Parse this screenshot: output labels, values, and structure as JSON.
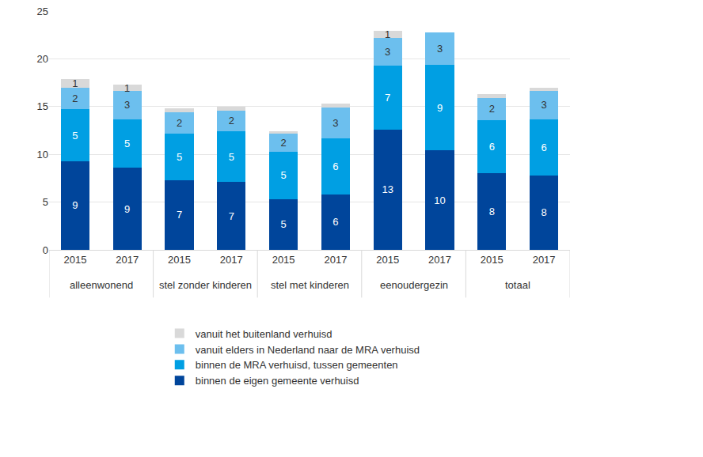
{
  "chart_data": {
    "type": "bar",
    "stacked": true,
    "data_labels": true,
    "grid": true,
    "legend": "bottom",
    "categories": [
      "2015",
      "2017",
      "2015",
      "2017",
      "2015",
      "2017",
      "2015",
      "2017",
      "2015",
      "2017"
    ],
    "groups": [
      "alleenwonend",
      "alleenwonend",
      "stel zonder kinderen",
      "stel zonder kinderen",
      "stel met kinderen",
      "stel met kinderen",
      "eenoudergezin",
      "eenoudergezin",
      "totaal",
      "totaal"
    ],
    "ylim": [
      0,
      25
    ],
    "yticks": [
      0,
      5,
      10,
      15,
      20,
      25
    ],
    "series": [
      {
        "name": "binnen de eigen gemeente verhuisd",
        "color": "#00459b",
        "values": [
          9.3,
          8.6,
          7.3,
          7.1,
          5.3,
          5.8,
          12.6,
          10.4,
          8.0,
          7.8
        ],
        "value_labels": [
          "9",
          "9",
          "7",
          "7",
          "5",
          "6",
          "13",
          "10",
          "8",
          "8"
        ]
      },
      {
        "name": "binnen de MRA verhuisd, tussen gemeenten",
        "color": "#009fe3",
        "values": [
          5.4,
          5.1,
          4.9,
          5.3,
          5.0,
          5.9,
          6.7,
          9.0,
          5.6,
          5.9
        ],
        "value_labels": [
          "5",
          "5",
          "5",
          "5",
          "5",
          "6",
          "7",
          "9",
          "6",
          "6"
        ]
      },
      {
        "name": "vanuit elders in Nederland naar de MRA verhuisd",
        "color": "#6cbfee",
        "values": [
          2.3,
          2.9,
          2.2,
          2.2,
          1.9,
          3.2,
          2.9,
          3.4,
          2.3,
          2.9
        ],
        "value_labels": [
          "2",
          "3",
          "2",
          "2",
          "2",
          "3",
          "3",
          "3",
          "2",
          "3"
        ]
      },
      {
        "name": "vanuit het buitenland verhuisd",
        "color": "#d9d9d9",
        "values": [
          0.9,
          0.7,
          0.4,
          0.4,
          0.2,
          0.4,
          0.7,
          0,
          0.4,
          0.4
        ],
        "value_labels": [
          "1",
          "1",
          null,
          null,
          null,
          null,
          "1",
          null,
          null,
          null
        ]
      }
    ]
  }
}
